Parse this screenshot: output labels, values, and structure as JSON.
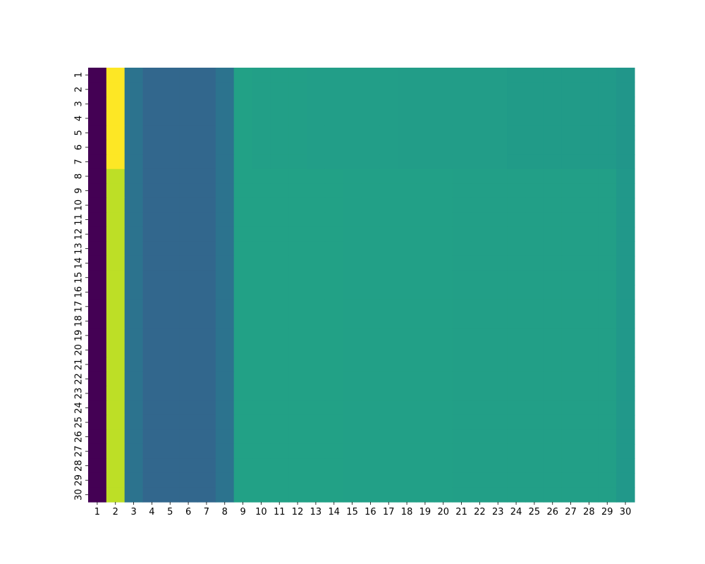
{
  "chart_data": {
    "type": "heatmap",
    "title": "",
    "xlabel": "",
    "ylabel": "",
    "colormap": "viridis",
    "colorbar": false,
    "grid": false,
    "x_labels": [
      "1",
      "2",
      "3",
      "4",
      "5",
      "6",
      "7",
      "8",
      "9",
      "10",
      "11",
      "12",
      "13",
      "14",
      "15",
      "16",
      "17",
      "18",
      "19",
      "20",
      "21",
      "22",
      "23",
      "24",
      "25",
      "26",
      "27",
      "28",
      "29",
      "30"
    ],
    "y_labels": [
      "1",
      "2",
      "3",
      "4",
      "5",
      "6",
      "7",
      "8",
      "9",
      "10",
      "11",
      "12",
      "13",
      "14",
      "15",
      "16",
      "17",
      "18",
      "19",
      "20",
      "21",
      "22",
      "23",
      "24",
      "25",
      "26",
      "27",
      "28",
      "29",
      "30"
    ],
    "y_groups": [
      {
        "rows": [
          "1",
          "2",
          "3",
          "4",
          "5",
          "6",
          "7"
        ],
        "values": [
          0.0,
          1.0,
          0.38,
          0.33,
          0.33,
          0.33,
          0.33,
          0.38,
          0.57,
          0.56,
          0.56,
          0.56,
          0.555,
          0.555,
          0.555,
          0.555,
          0.555,
          0.55,
          0.55,
          0.55,
          0.55,
          0.55,
          0.55,
          0.545,
          0.545,
          0.545,
          0.545,
          0.54,
          0.54,
          0.52
        ]
      },
      {
        "rows": [
          "8",
          "9",
          "10",
          "11",
          "12",
          "13",
          "14",
          "15",
          "16",
          "17",
          "18",
          "19",
          "20",
          "21",
          "22",
          "23",
          "24",
          "25",
          "26",
          "27",
          "28",
          "29",
          "30"
        ],
        "values": [
          0.0,
          0.9,
          0.38,
          0.33,
          0.33,
          0.33,
          0.33,
          0.38,
          0.57,
          0.57,
          0.57,
          0.57,
          0.57,
          0.57,
          0.565,
          0.565,
          0.565,
          0.565,
          0.565,
          0.565,
          0.56,
          0.56,
          0.56,
          0.56,
          0.56,
          0.56,
          0.56,
          0.56,
          0.56,
          0.53
        ]
      }
    ]
  }
}
